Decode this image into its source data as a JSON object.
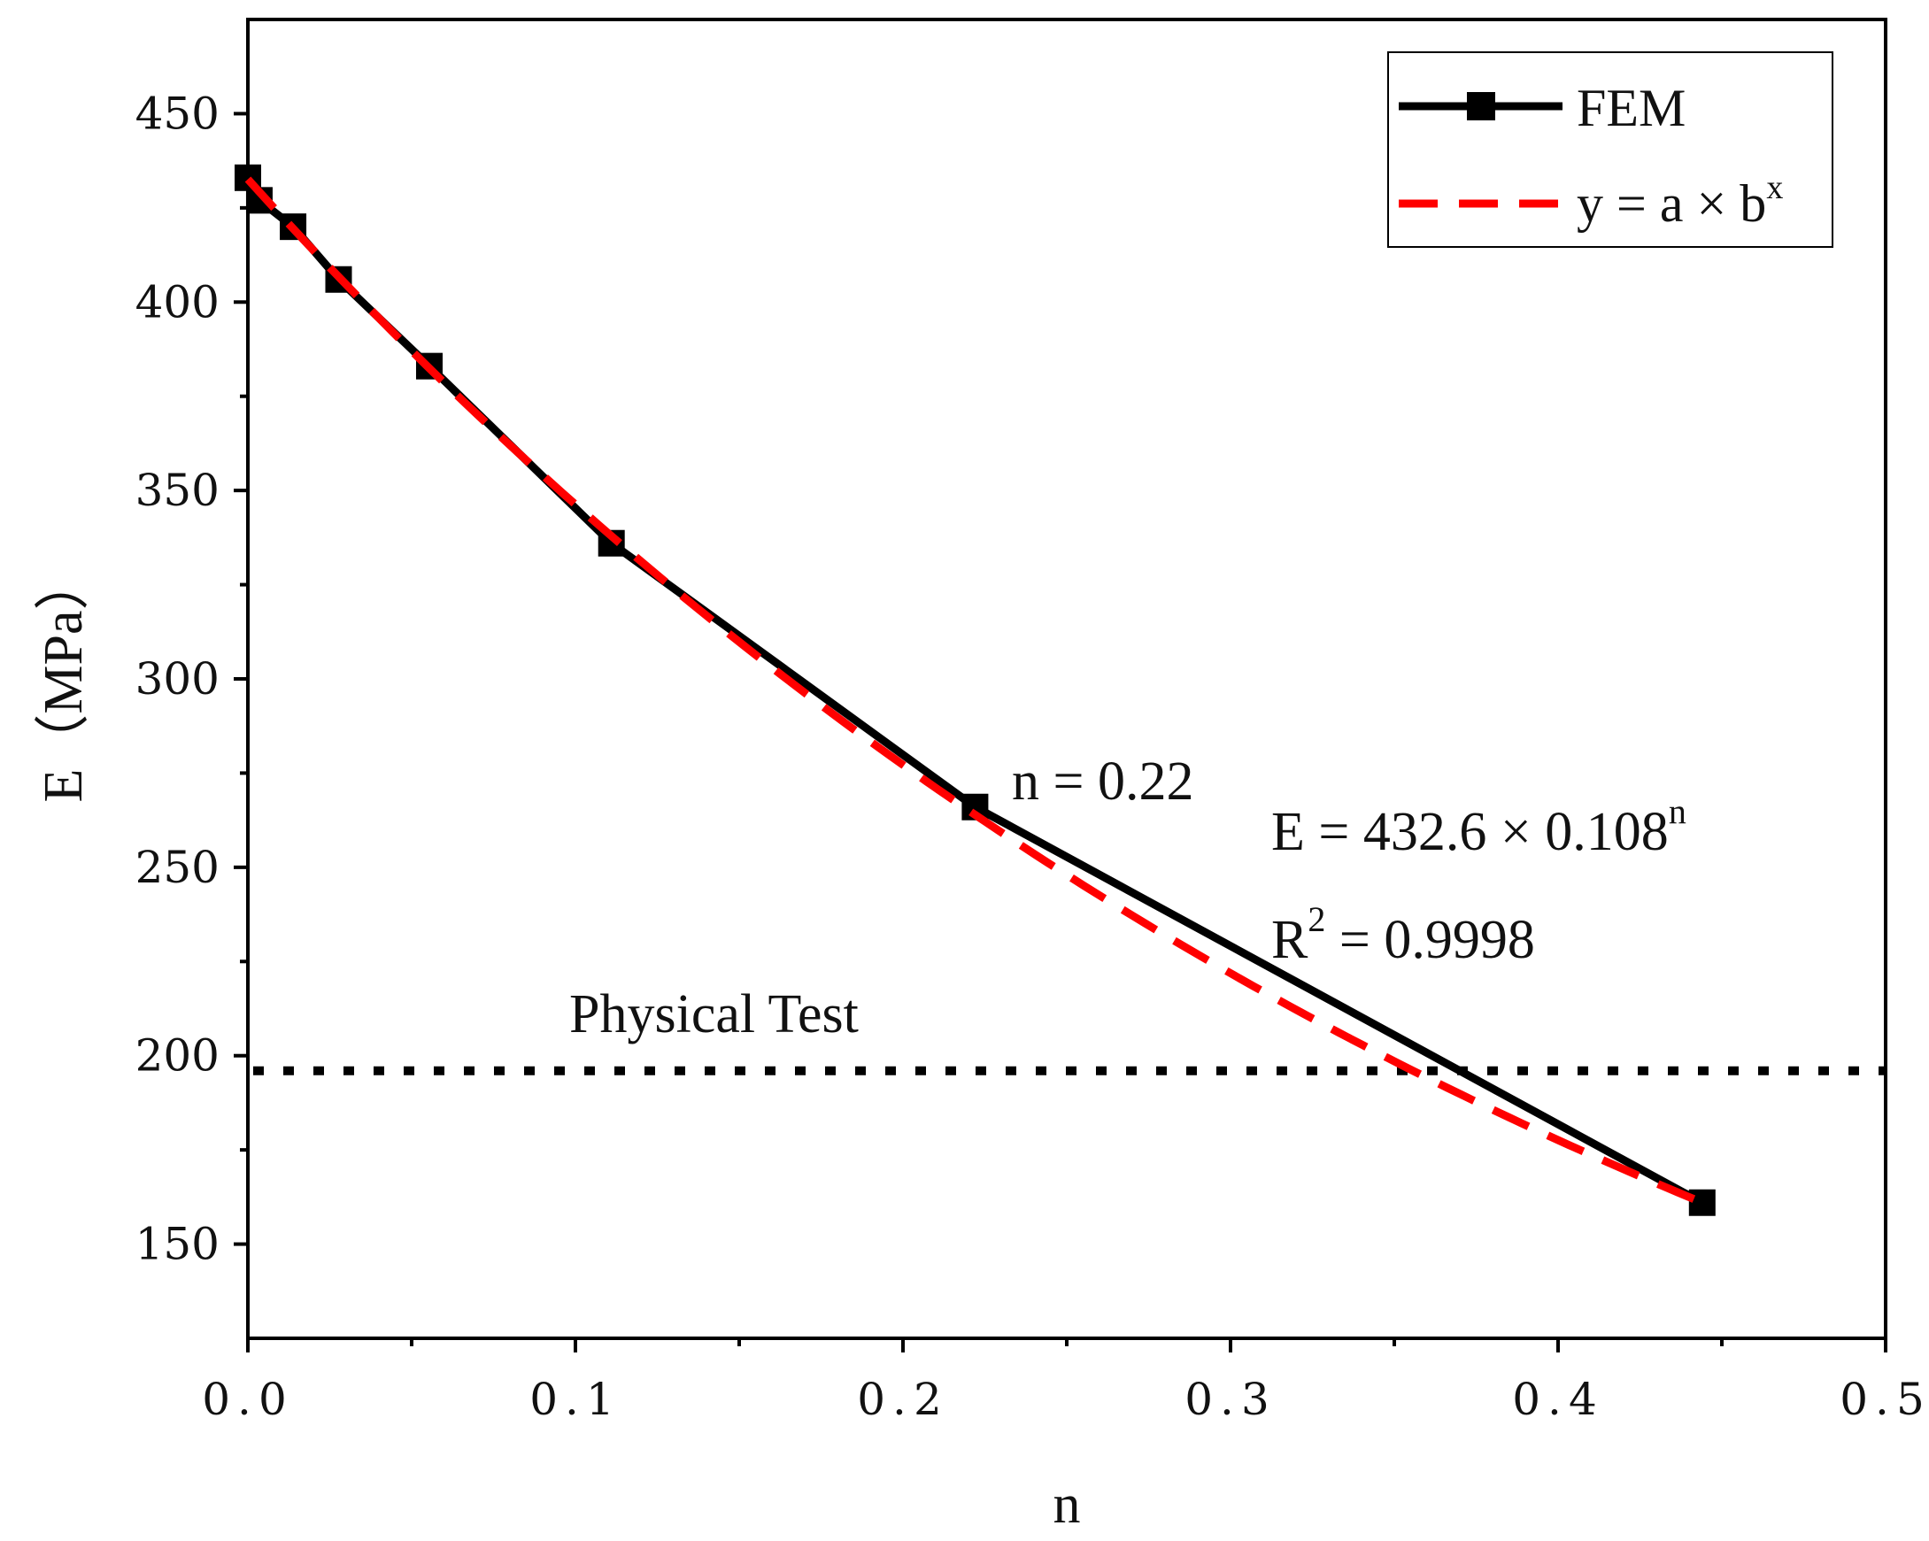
{
  "chart_data": {
    "type": "line",
    "xlabel": "n",
    "ylabel": "E（MPa）",
    "xlim": [
      0.0,
      0.5
    ],
    "ylim": [
      125,
      475
    ],
    "x_ticks": [
      "0.0",
      "0.1",
      "0.2",
      "0.3",
      "0.4",
      "0.5"
    ],
    "x_tick_values": [
      0.0,
      0.1,
      0.2,
      0.3,
      0.4,
      0.5
    ],
    "x_minor_tick_values": [
      0.05,
      0.15,
      0.25,
      0.35,
      0.45
    ],
    "y_ticks": [
      "150",
      "200",
      "250",
      "300",
      "350",
      "400",
      "450"
    ],
    "y_tick_values": [
      150,
      200,
      250,
      300,
      350,
      400,
      450
    ],
    "y_minor_tick_values": [
      175,
      225,
      275,
      325,
      375,
      425
    ],
    "series": [
      {
        "name": "FEM",
        "style": "solid-line-square-markers",
        "color": "#000000",
        "x": [
          0.0,
          0.0035,
          0.0138,
          0.0277,
          0.0554,
          0.111,
          0.222,
          0.444
        ],
        "values": [
          433,
          427,
          420,
          406,
          383,
          336,
          266,
          161
        ]
      },
      {
        "name": "y = a × b^x",
        "style": "dashed",
        "color": "#ff0000",
        "a": 432.6,
        "b": 0.108
      }
    ],
    "reference_line": {
      "label": "Physical Test",
      "value": 196,
      "style": "dotted",
      "color": "#000000"
    },
    "annotations": {
      "n_marker": "n = 0.22",
      "equation_main": "E = 432.6 × 0.108",
      "equation_sup": "n",
      "r2_main": "R",
      "r2_sup": "2",
      "r2_value": " = 0.9998"
    },
    "legend": {
      "position": "top-right",
      "entries": [
        {
          "label": "FEM"
        },
        {
          "label_main": "y = a × b",
          "label_sup": "x"
        }
      ]
    }
  }
}
